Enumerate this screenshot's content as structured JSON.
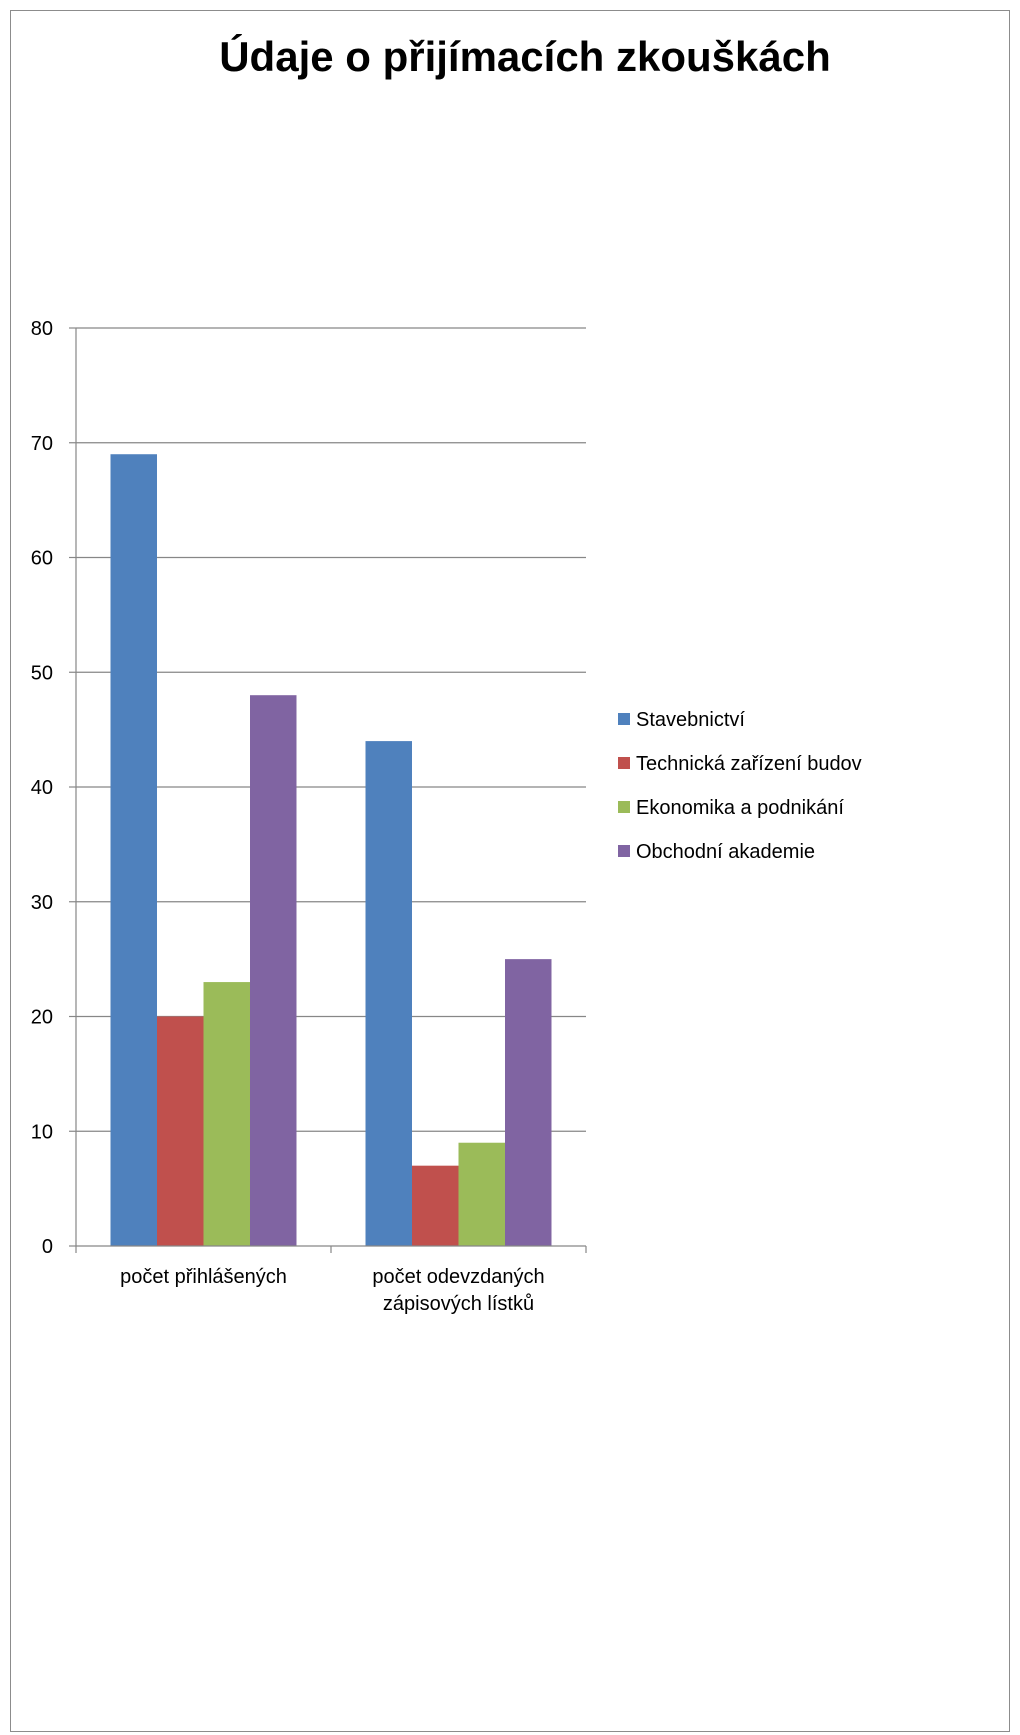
{
  "chart_data": {
    "type": "bar",
    "title": "Údaje o přijímacích zkouškách",
    "categories": [
      [
        "počet přihlášených"
      ],
      [
        "počet odevzdaných",
        "zápisových lístků"
      ]
    ],
    "series": [
      {
        "name": "Stavebnictví",
        "color": "#4F81BD",
        "values": [
          69,
          44
        ]
      },
      {
        "name": "Technická zařízení budov",
        "color": "#C0504D",
        "values": [
          20,
          7
        ]
      },
      {
        "name": "Ekonomika a podnikání",
        "color": "#9BBB59",
        "values": [
          23,
          9
        ]
      },
      {
        "name": "Obchodní akademie",
        "color": "#8064A2",
        "values": [
          48,
          25
        ]
      }
    ],
    "ylim": [
      0,
      80
    ],
    "yticks": [
      0,
      10,
      20,
      30,
      40,
      50,
      60,
      70,
      80
    ],
    "grid": true,
    "legend": "right",
    "xlabel": "",
    "ylabel": ""
  }
}
